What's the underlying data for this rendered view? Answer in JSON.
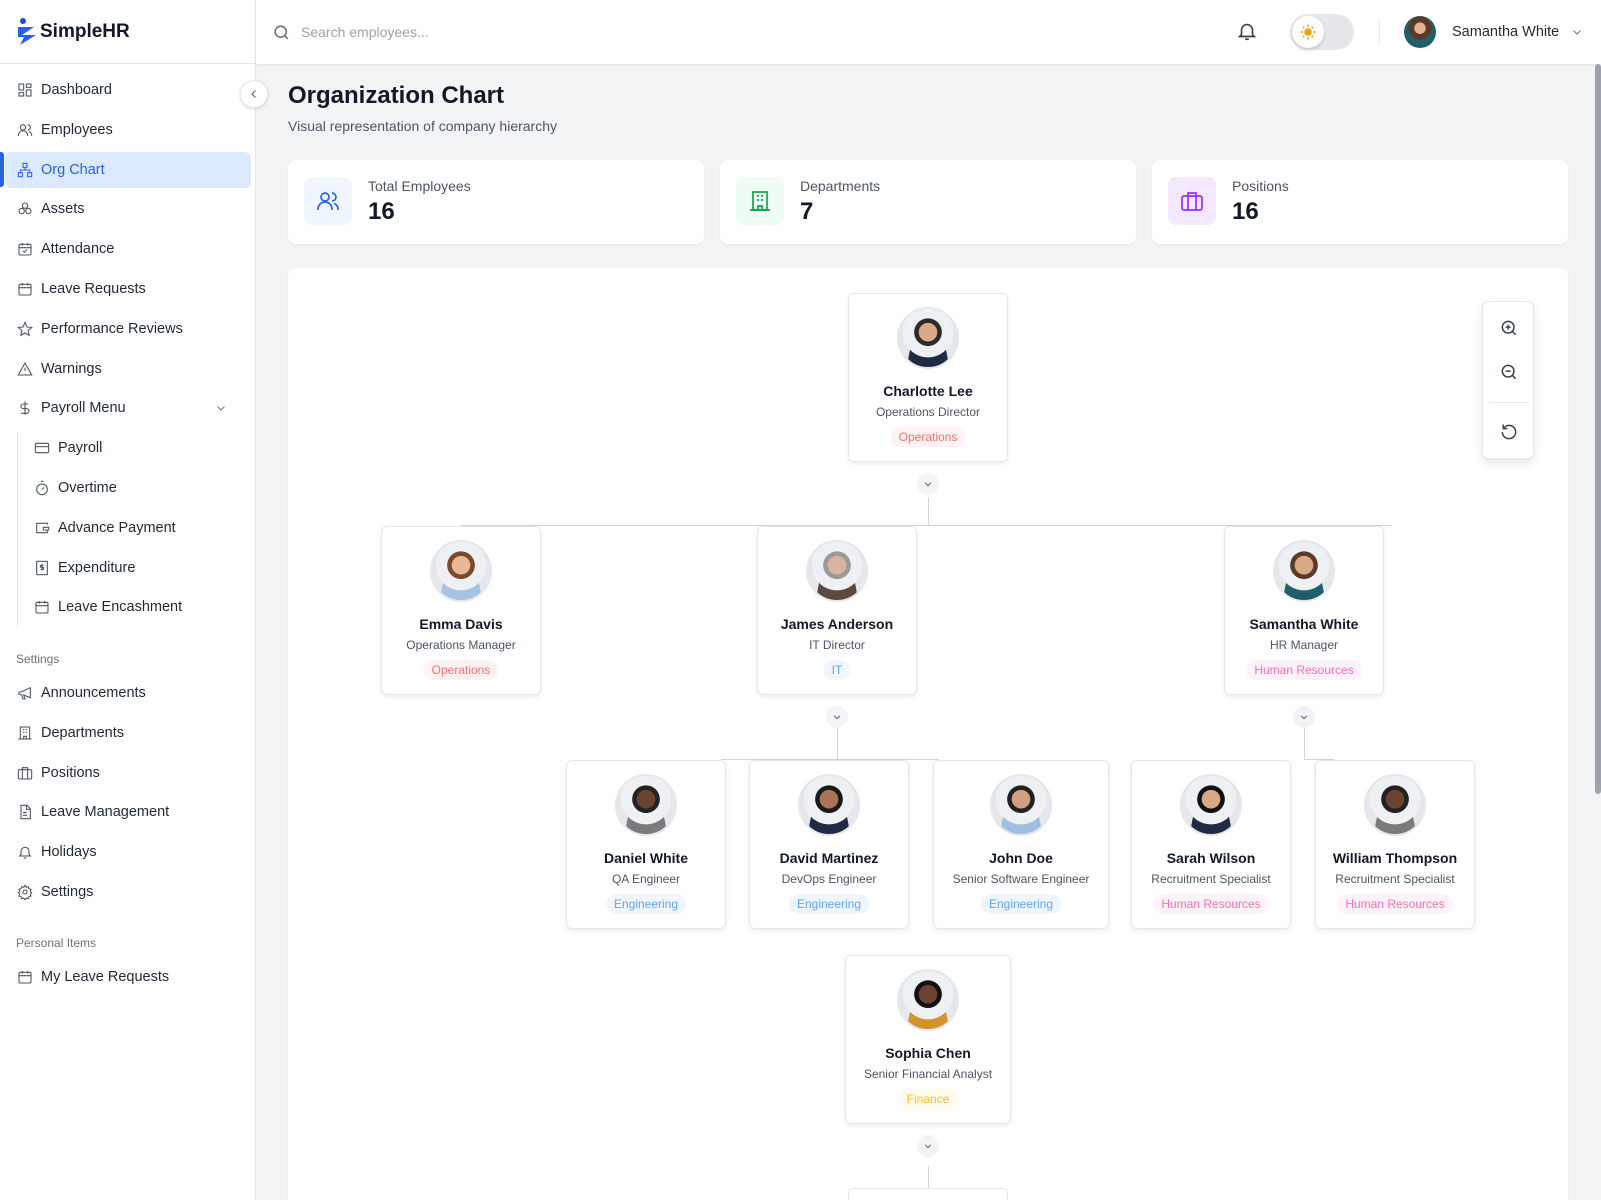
{
  "app": {
    "name": "SimpleHR"
  },
  "search": {
    "placeholder": "Search employees..."
  },
  "header": {
    "user_name": "Samantha White",
    "theme": "light"
  },
  "sidebar": {
    "items": [
      {
        "label": "Dashboard",
        "icon": "dashboard-icon"
      },
      {
        "label": "Employees",
        "icon": "users-icon"
      },
      {
        "label": "Org Chart",
        "icon": "org-chart-icon",
        "active": true
      },
      {
        "label": "Assets",
        "icon": "assets-icon"
      },
      {
        "label": "Attendance",
        "icon": "calendar-check-icon"
      },
      {
        "label": "Leave Requests",
        "icon": "calendar-icon"
      },
      {
        "label": "Performance Reviews",
        "icon": "star-icon"
      },
      {
        "label": "Warnings",
        "icon": "warning-icon"
      },
      {
        "label": "Payroll Menu",
        "icon": "dollar-icon",
        "expanded": true
      }
    ],
    "payroll_sub": [
      {
        "label": "Payroll",
        "icon": "credit-card-icon"
      },
      {
        "label": "Overtime",
        "icon": "timer-icon"
      },
      {
        "label": "Advance Payment",
        "icon": "wallet-icon"
      },
      {
        "label": "Expenditure",
        "icon": "receipt-icon"
      },
      {
        "label": "Leave Encashment",
        "icon": "calendar-icon"
      }
    ],
    "settings_label": "Settings",
    "settings_items": [
      {
        "label": "Announcements",
        "icon": "megaphone-icon"
      },
      {
        "label": "Departments",
        "icon": "building-icon"
      },
      {
        "label": "Positions",
        "icon": "briefcase-icon"
      },
      {
        "label": "Leave Management",
        "icon": "file-icon"
      },
      {
        "label": "Holidays",
        "icon": "bell-icon"
      },
      {
        "label": "Settings",
        "icon": "gear-icon"
      }
    ],
    "personal_label": "Personal Items",
    "personal_items": [
      {
        "label": "My Leave Requests",
        "icon": "calendar-icon"
      }
    ]
  },
  "page": {
    "title": "Organization Chart",
    "subtitle": "Visual representation of company hierarchy"
  },
  "stats": [
    {
      "label": "Total Employees",
      "value": "16",
      "color": "#2563eb",
      "bg": "#eff6ff",
      "icon": "users-icon"
    },
    {
      "label": "Departments",
      "value": "7",
      "color": "#16a34a",
      "bg": "#f0fdf4",
      "icon": "building-icon"
    },
    {
      "label": "Positions",
      "value": "16",
      "color": "#9333ea",
      "bg": "#f3e8ff",
      "icon": "briefcase-icon"
    }
  ],
  "departments": {
    "Operations": {
      "color": "#f87171",
      "bg": "#fef2f2"
    },
    "IT": {
      "color": "#60a5fa",
      "bg": "#eff6ff"
    },
    "Human Resources": {
      "color": "#f472b6",
      "bg": "#fdf2f8"
    },
    "Engineering": {
      "color": "#60a5fa",
      "bg": "#eff6ff"
    },
    "Finance": {
      "color": "#fbbf24",
      "bg": "#fffbeb"
    }
  },
  "people": [
    {
      "name": "Charlotte Lee",
      "position": "Operations Director",
      "department": "Operations",
      "expandable": true
    },
    {
      "name": "Emma Davis",
      "position": "Operations Manager",
      "department": "Operations"
    },
    {
      "name": "James Anderson",
      "position": "IT Director",
      "department": "IT",
      "expandable": true
    },
    {
      "name": "Samantha White",
      "position": "HR Manager",
      "department": "Human Resources",
      "expandable": true
    },
    {
      "name": "Daniel White",
      "position": "QA Engineer",
      "department": "Engineering"
    },
    {
      "name": "David Martinez",
      "position": "DevOps Engineer",
      "department": "Engineering"
    },
    {
      "name": "John Doe",
      "position": "Senior Software Engineer",
      "department": "Engineering"
    },
    {
      "name": "Sarah Wilson",
      "position": "Recruitment Specialist",
      "department": "Human Resources"
    },
    {
      "name": "William Thompson",
      "position": "Recruitment Specialist",
      "department": "Human Resources"
    },
    {
      "name": "Sophia Chen",
      "position": "Senior Financial Analyst",
      "department": "Finance",
      "expandable": true
    }
  ],
  "zoom_controls": {
    "zoom_in": "zoom-in-icon",
    "zoom_out": "zoom-out-icon",
    "reset": "reset-icon"
  }
}
